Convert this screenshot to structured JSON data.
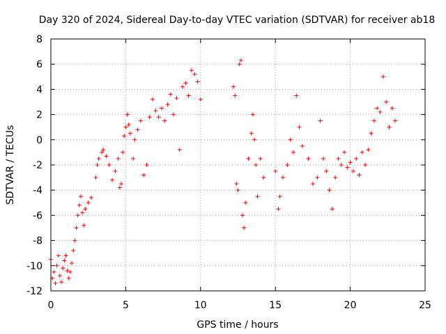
{
  "chart_data": {
    "type": "scatter",
    "title": "Day 320 of 2024, Sidereal Day-to-day VTEC variation (SDTVAR) for receiver ab18",
    "xlabel": "GPS time / hours",
    "ylabel": "SDTVAR / TECUs",
    "xlim": [
      0,
      25
    ],
    "ylim": [
      -12,
      8
    ],
    "xticks": [
      0,
      5,
      10,
      15,
      20,
      25
    ],
    "yticks": [
      -12,
      -10,
      -8,
      -6,
      -4,
      -2,
      0,
      2,
      4,
      6,
      8
    ],
    "grid": true,
    "marker": "+",
    "color": "#ff0000",
    "series": [
      {
        "name": "SDTVAR",
        "points": [
          [
            0.0,
            -9.5
          ],
          [
            0.1,
            -11.0
          ],
          [
            0.2,
            -10.5
          ],
          [
            0.3,
            -11.4
          ],
          [
            0.4,
            -10.0
          ],
          [
            0.5,
            -9.2
          ],
          [
            0.6,
            -10.8
          ],
          [
            0.7,
            -11.3
          ],
          [
            0.8,
            -10.2
          ],
          [
            0.9,
            -9.6
          ],
          [
            1.0,
            -9.2
          ],
          [
            1.1,
            -10.4
          ],
          [
            1.2,
            -11.0
          ],
          [
            1.3,
            -10.5
          ],
          [
            1.4,
            -9.8
          ],
          [
            1.5,
            -8.8
          ],
          [
            1.6,
            -8.0
          ],
          [
            1.7,
            -7.0
          ],
          [
            1.8,
            -6.0
          ],
          [
            1.9,
            -5.2
          ],
          [
            2.0,
            -4.5
          ],
          [
            2.1,
            -5.8
          ],
          [
            2.2,
            -6.8
          ],
          [
            2.3,
            -5.5
          ],
          [
            2.5,
            -5.0
          ],
          [
            2.7,
            -4.6
          ],
          [
            3.0,
            -3.0
          ],
          [
            3.1,
            -2.0
          ],
          [
            3.2,
            -1.5
          ],
          [
            3.4,
            -1.0
          ],
          [
            3.5,
            -0.8
          ],
          [
            3.7,
            -1.3
          ],
          [
            3.9,
            -2.0
          ],
          [
            4.1,
            -3.2
          ],
          [
            4.3,
            -2.5
          ],
          [
            4.5,
            -1.5
          ],
          [
            4.6,
            -3.8
          ],
          [
            4.7,
            -3.5
          ],
          [
            4.8,
            -1.0
          ],
          [
            4.9,
            0.3
          ],
          [
            5.0,
            1.0
          ],
          [
            5.1,
            2.0
          ],
          [
            5.2,
            1.2
          ],
          [
            5.3,
            0.5
          ],
          [
            5.5,
            -1.5
          ],
          [
            5.6,
            0.0
          ],
          [
            5.8,
            0.8
          ],
          [
            6.0,
            1.5
          ],
          [
            6.2,
            -2.8
          ],
          [
            6.4,
            -2.0
          ],
          [
            6.6,
            1.8
          ],
          [
            6.8,
            3.2
          ],
          [
            7.0,
            2.3
          ],
          [
            7.2,
            1.8
          ],
          [
            7.4,
            2.5
          ],
          [
            7.6,
            1.5
          ],
          [
            7.8,
            2.8
          ],
          [
            8.0,
            3.6
          ],
          [
            8.2,
            2.0
          ],
          [
            8.4,
            3.3
          ],
          [
            8.6,
            -0.8
          ],
          [
            8.8,
            4.2
          ],
          [
            9.0,
            4.5
          ],
          [
            9.2,
            3.5
          ],
          [
            9.4,
            5.5
          ],
          [
            9.6,
            5.2
          ],
          [
            9.8,
            4.6
          ],
          [
            10.0,
            3.2
          ],
          [
            12.2,
            4.2
          ],
          [
            12.3,
            3.5
          ],
          [
            12.4,
            -3.5
          ],
          [
            12.5,
            -4.0
          ],
          [
            12.6,
            6.0
          ],
          [
            12.7,
            6.3
          ],
          [
            12.8,
            -6.0
          ],
          [
            12.9,
            -7.0
          ],
          [
            13.0,
            -5.0
          ],
          [
            13.2,
            -1.5
          ],
          [
            13.4,
            0.5
          ],
          [
            13.5,
            2.0
          ],
          [
            13.6,
            0.0
          ],
          [
            13.7,
            -2.0
          ],
          [
            13.8,
            -4.5
          ],
          [
            14.0,
            -1.5
          ],
          [
            14.2,
            -3.0
          ],
          [
            15.0,
            -2.5
          ],
          [
            15.2,
            -5.5
          ],
          [
            15.3,
            -4.5
          ],
          [
            15.5,
            -3.0
          ],
          [
            15.8,
            -2.0
          ],
          [
            16.0,
            0.0
          ],
          [
            16.2,
            -1.0
          ],
          [
            16.4,
            3.5
          ],
          [
            16.6,
            1.0
          ],
          [
            16.8,
            -0.5
          ],
          [
            17.2,
            -1.5
          ],
          [
            17.5,
            -3.5
          ],
          [
            17.8,
            -3.0
          ],
          [
            18.0,
            1.5
          ],
          [
            18.2,
            -1.5
          ],
          [
            18.4,
            -2.5
          ],
          [
            18.6,
            -4.0
          ],
          [
            18.8,
            -5.5
          ],
          [
            19.0,
            -3.0
          ],
          [
            19.2,
            -1.5
          ],
          [
            19.4,
            -2.0
          ],
          [
            19.6,
            -1.0
          ],
          [
            19.8,
            -2.2
          ],
          [
            20.0,
            -1.8
          ],
          [
            20.2,
            -2.5
          ],
          [
            20.4,
            -1.5
          ],
          [
            20.6,
            -2.8
          ],
          [
            20.8,
            -1.0
          ],
          [
            21.0,
            -2.0
          ],
          [
            21.2,
            -0.8
          ],
          [
            21.4,
            0.5
          ],
          [
            21.6,
            1.5
          ],
          [
            21.8,
            2.5
          ],
          [
            22.0,
            2.2
          ],
          [
            22.2,
            5.0
          ],
          [
            22.4,
            3.0
          ],
          [
            22.6,
            1.0
          ],
          [
            22.8,
            2.5
          ],
          [
            23.0,
            1.5
          ]
        ]
      }
    ]
  }
}
